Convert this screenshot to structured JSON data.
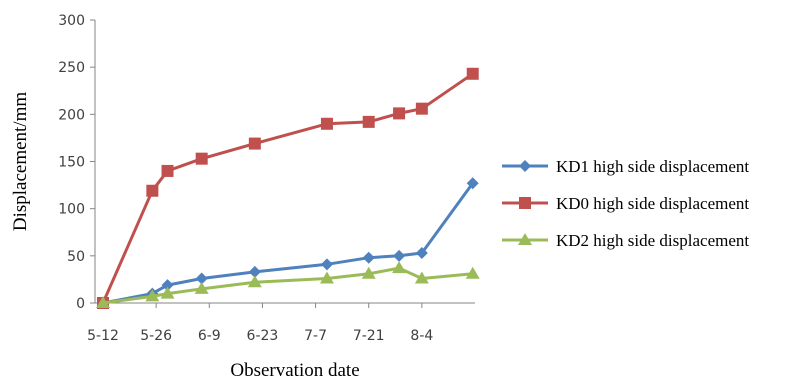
{
  "chart_data": {
    "type": "line",
    "xlabel": "Observation date",
    "ylabel": "Displacement/mm",
    "ylim": [
      0,
      300
    ],
    "yticks": [
      0,
      50,
      100,
      150,
      200,
      250,
      300
    ],
    "xticks": [
      "5-12",
      "5-26",
      "6-9",
      "6-23",
      "7-7",
      "7-21",
      "8-4"
    ],
    "xlim": [
      0,
      84
    ],
    "grid": false,
    "legend_position": "right",
    "series": [
      {
        "name": "KD1 high side displacement",
        "color": "#4f81bd",
        "marker": "diamond",
        "x": [
          0,
          13,
          17,
          26,
          40,
          59,
          70,
          78,
          84
        ],
        "values": [
          0,
          10,
          19,
          26,
          33,
          41,
          48,
          50,
          53
        ]
      },
      {
        "name": "KD0 high side displacement",
        "color": "#c0504d",
        "marker": "square",
        "x": [
          0,
          13,
          17,
          26,
          40,
          59,
          70,
          78,
          84
        ],
        "values": [
          0,
          119,
          140,
          153,
          169,
          190,
          192,
          201,
          206
        ]
      },
      {
        "name": "KD2 high side displacement",
        "color": "#9bbb59",
        "marker": "triangle",
        "x": [
          0,
          13,
          17,
          26,
          40,
          59,
          70,
          78,
          84
        ],
        "values": [
          0,
          7,
          10,
          15,
          22,
          26,
          31,
          37,
          26
        ]
      }
    ],
    "tail_points": {
      "x_label": "8-4+",
      "values": [
        127,
        243,
        31
      ]
    }
  }
}
